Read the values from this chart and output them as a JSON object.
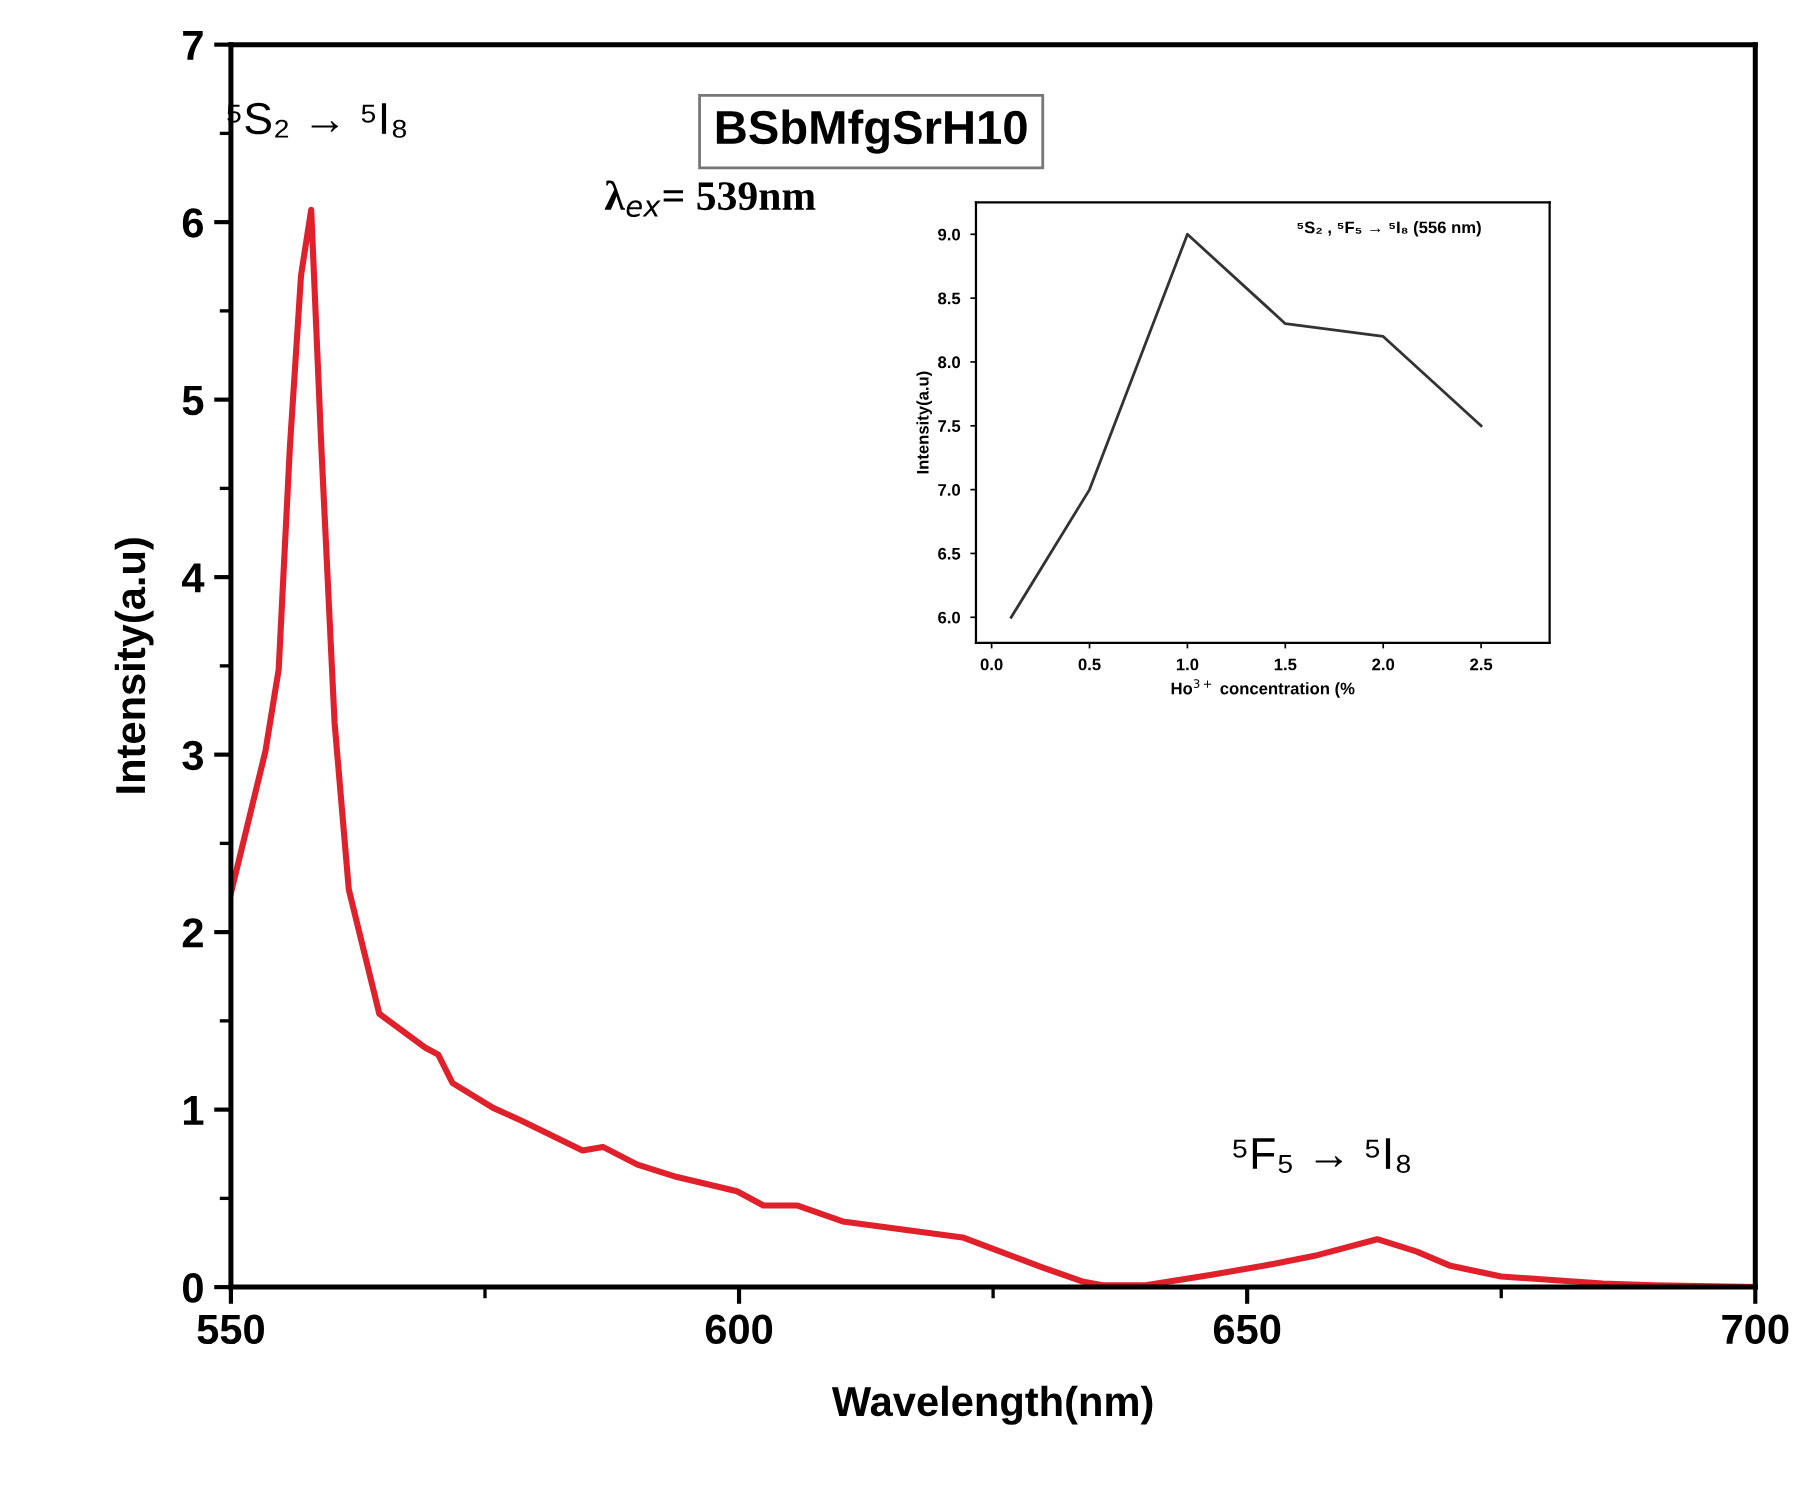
{
  "chart_data": [
    {
      "type": "line",
      "title": "BSbMfgSrH10",
      "subtitle": "λ$_{ex}$= 539nm",
      "xlabel": "Wavelength(nm)",
      "ylabel": "Intensity(a.u)",
      "series": [
        {
          "color": "#e0202a",
          "x": [
            550,
            553.4,
            554.7,
            555.8,
            556.9,
            557.9,
            558.9,
            560.2,
            561.6,
            564.6,
            569.1,
            570.4,
            571.8,
            575.8,
            578.5,
            584.6,
            586.6,
            590,
            593.9,
            599.8,
            602.4,
            605.7,
            610.2,
            622,
            624.8,
            629.9,
            633.9,
            635.8,
            640,
            646.5,
            651.6,
            656.9,
            662.8,
            666.7,
            670,
            675,
            680,
            685,
            690,
            700
          ],
          "values": [
            2.22,
            3.02,
            3.48,
            4.73,
            5.7,
            6.07,
            4.73,
            3.18,
            2.24,
            1.54,
            1.35,
            1.31,
            1.15,
            1.01,
            0.94,
            0.77,
            0.79,
            0.69,
            0.62,
            0.54,
            0.46,
            0.46,
            0.37,
            0.28,
            0.22,
            0.11,
            0.03,
            0.01,
            0.01,
            0.07,
            0.12,
            0.18,
            0.27,
            0.2,
            0.12,
            0.06,
            0.04,
            0.02,
            0.01,
            0
          ]
        }
      ],
      "xlim": [
        550,
        700
      ],
      "xticks": [
        550,
        600,
        650,
        700
      ],
      "ylim": [
        0,
        7
      ],
      "yticks": [
        0,
        1,
        2,
        3,
        4,
        5,
        6,
        7
      ],
      "grid": false,
      "legend": false,
      "marker": "none",
      "line_style": "solid",
      "annotations": [
        {
          "text": "⁵S₂ → ⁵I₈",
          "x": 557.9,
          "y": 6.07
        },
        {
          "text": "⁵F₅ → ⁵I₈",
          "x": 662.8,
          "y": 0.27
        }
      ]
    },
    {
      "type": "line",
      "title": "⁵S₂ , ⁵F₅ → ⁵I₈ (556 nm)",
      "xlabel": "Ho$^{3+}$ concentration (%",
      "ylabel": "Intensity(a.u)",
      "series": [
        {
          "color": "#333333",
          "x": [
            0.1,
            0.5,
            1.0,
            1.5,
            2.0,
            2.5
          ],
          "values": [
            6.0,
            7.0,
            9.0,
            8.3,
            8.2,
            7.5
          ]
        }
      ],
      "xlim": [
        -0.08,
        2.85
      ],
      "xticks": [
        {
          "value": 0,
          "label": "0.0"
        },
        0.5,
        {
          "value": 1,
          "label": "1.0"
        },
        1.5,
        {
          "value": 2,
          "label": "2.0"
        },
        2.5
      ],
      "ylim": [
        5.8,
        9.25
      ],
      "yticks": [
        {
          "value": 6,
          "label": "6.0"
        },
        6.5,
        {
          "value": 7,
          "label": "7.0"
        },
        7.5,
        {
          "value": 8,
          "label": "8.0"
        },
        8.5,
        {
          "value": 9,
          "label": "9.0"
        }
      ],
      "grid": false,
      "legend": false,
      "marker": "none",
      "line_style": "solid"
    }
  ]
}
